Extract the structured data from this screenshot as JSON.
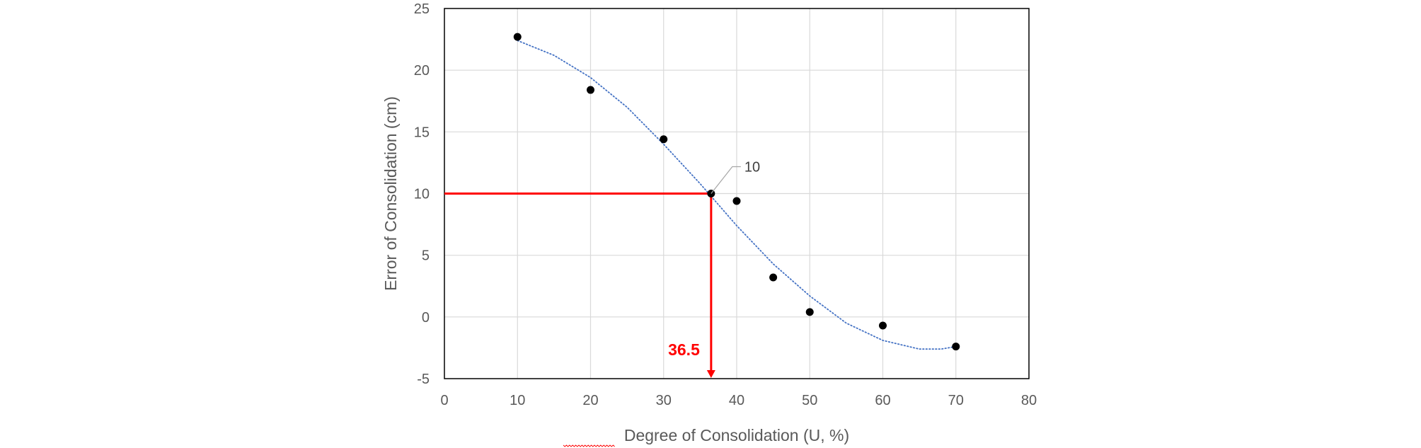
{
  "chart_data": {
    "type": "scatter",
    "title": "",
    "xlabel": "Degree of Consolidation (U, %)",
    "ylabel": "Error of Consolidation (cm)",
    "xlim": [
      0,
      80
    ],
    "ylim": [
      -5,
      25
    ],
    "x_ticks": [
      0,
      10,
      20,
      30,
      40,
      50,
      60,
      70,
      80
    ],
    "y_ticks": [
      -5,
      0,
      5,
      10,
      15,
      20,
      25
    ],
    "grid": true,
    "legend": "none",
    "series": [
      {
        "type": "scatter",
        "color": "#000000",
        "points": [
          {
            "x": 10,
            "y": 22.7
          },
          {
            "x": 20,
            "y": 18.4
          },
          {
            "x": 30,
            "y": 14.4
          },
          {
            "x": 36.5,
            "y": 10.0
          },
          {
            "x": 40,
            "y": 9.4
          },
          {
            "x": 45,
            "y": 3.2
          },
          {
            "x": 50,
            "y": 0.4
          },
          {
            "x": 60,
            "y": -0.7
          },
          {
            "x": 70,
            "y": -2.4
          }
        ]
      },
      {
        "type": "trendline",
        "style": "dotted",
        "color": "#4472C4",
        "points": [
          {
            "x": 10,
            "y": 22.4
          },
          {
            "x": 15,
            "y": 21.2
          },
          {
            "x": 20,
            "y": 19.4
          },
          {
            "x": 25,
            "y": 17.0
          },
          {
            "x": 30,
            "y": 14.0
          },
          {
            "x": 35,
            "y": 10.8
          },
          {
            "x": 40,
            "y": 7.4
          },
          {
            "x": 45,
            "y": 4.3
          },
          {
            "x": 50,
            "y": 1.7
          },
          {
            "x": 55,
            "y": -0.5
          },
          {
            "x": 60,
            "y": -1.9
          },
          {
            "x": 65,
            "y": -2.6
          },
          {
            "x": 68,
            "y": -2.6
          },
          {
            "x": 70,
            "y": -2.4
          }
        ]
      }
    ],
    "annotations": [
      {
        "type": "callout",
        "x": 36.5,
        "y": 10,
        "label": "10",
        "color": "#A6A6A6"
      },
      {
        "type": "reference_lines",
        "x": 36.5,
        "y": 10,
        "color": "#FF0000",
        "label": "36.5"
      }
    ]
  }
}
